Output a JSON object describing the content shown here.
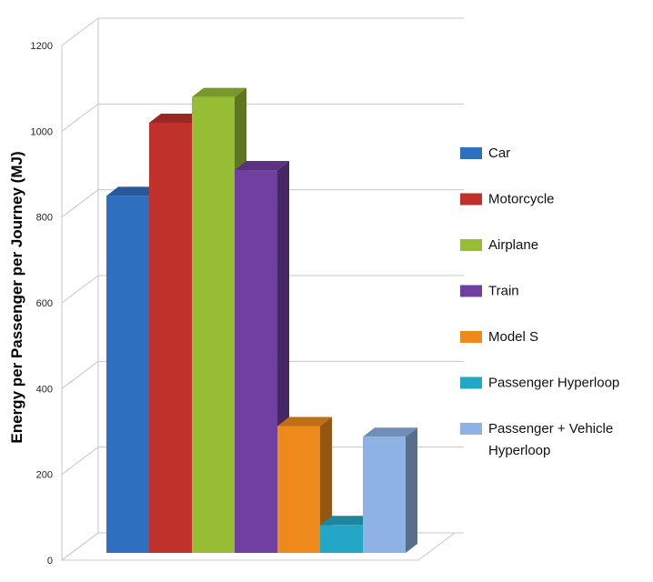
{
  "chart_data": {
    "type": "bar",
    "style": "3d-column",
    "categories": [
      "Car",
      "Motorcycle",
      "Airplane",
      "Train",
      "Model S",
      "Passenger Hyperloop",
      "Passenger + Vehicle Hyperloop"
    ],
    "series": [
      {
        "values": [
          830,
          1000,
          1060,
          890,
          295,
          65,
          270
        ]
      }
    ],
    "colors": [
      "#2f6fc0",
      "#c0312b",
      "#97bd35",
      "#7040a0",
      "#ee8a1c",
      "#24a6c6",
      "#8eb2e4"
    ],
    "xlabel": "",
    "ylabel": "Energy per Passenger per Journey (MJ)",
    "ylim": [
      0,
      1200
    ],
    "yticks": [
      "0",
      "200",
      "400",
      "600",
      "800",
      "1000",
      "1200"
    ],
    "grid": true,
    "legend_position": "right",
    "legend": [
      "Car",
      "Motorcycle",
      "Airplane",
      "Train",
      "Model S",
      "Passenger Hyperloop",
      "Passenger + Vehicle Hyperloop"
    ]
  }
}
